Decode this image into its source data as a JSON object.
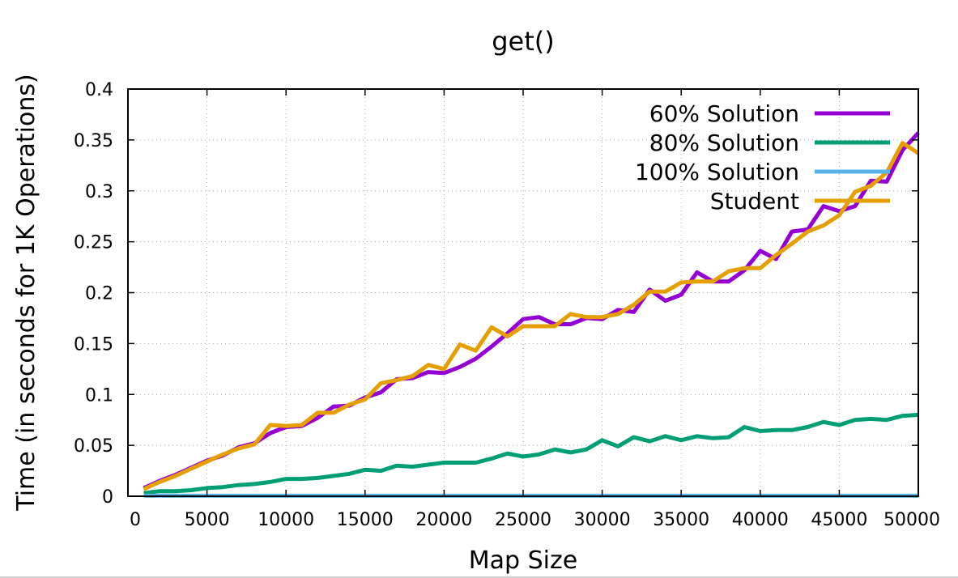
{
  "chart_data": {
    "type": "line",
    "title": "get()",
    "xlabel": "Map Size",
    "ylabel": "Time (in seconds for 1K Operations)",
    "xlim": [
      0,
      50000
    ],
    "ylim": [
      0,
      0.4
    ],
    "x_ticks": [
      0,
      5000,
      10000,
      15000,
      20000,
      25000,
      30000,
      35000,
      40000,
      45000,
      50000
    ],
    "x_tick_labels": [
      "0",
      "5000",
      "10000",
      "15000",
      "20000",
      "25000",
      "30000",
      "35000",
      "40000",
      "45000",
      "50000"
    ],
    "y_ticks": [
      0,
      0.05,
      0.1,
      0.15,
      0.2,
      0.25,
      0.3,
      0.35,
      0.4
    ],
    "y_tick_labels": [
      "0",
      "0.05",
      "0.1",
      "0.15",
      "0.2",
      "0.25",
      "0.3",
      "0.35",
      "0.4"
    ],
    "grid": true,
    "legend_position": "top-right",
    "x": [
      1000,
      2000,
      3000,
      4000,
      5000,
      6000,
      7000,
      8000,
      9000,
      10000,
      11000,
      12000,
      13000,
      14000,
      15000,
      16000,
      17000,
      18000,
      19000,
      20000,
      21000,
      22000,
      23000,
      24000,
      25000,
      26000,
      27000,
      28000,
      29000,
      30000,
      31000,
      32000,
      33000,
      34000,
      35000,
      36000,
      37000,
      38000,
      39000,
      40000,
      41000,
      42000,
      43000,
      44000,
      45000,
      46000,
      47000,
      48000,
      49000,
      50000
    ],
    "series": [
      {
        "name": "60% Solution",
        "color": "#9400d3",
        "values": [
          0.008,
          0.015,
          0.021,
          0.028,
          0.035,
          0.04,
          0.048,
          0.052,
          0.062,
          0.068,
          0.069,
          0.077,
          0.088,
          0.089,
          0.097,
          0.102,
          0.115,
          0.116,
          0.122,
          0.121,
          0.127,
          0.135,
          0.147,
          0.16,
          0.174,
          0.176,
          0.169,
          0.169,
          0.175,
          0.174,
          0.183,
          0.181,
          0.203,
          0.192,
          0.198,
          0.22,
          0.211,
          0.211,
          0.222,
          0.241,
          0.233,
          0.26,
          0.262,
          0.285,
          0.28,
          0.285,
          0.31,
          0.309,
          0.34,
          0.357
        ]
      },
      {
        "name": "80% Solution",
        "color": "#009e73",
        "values": [
          0.003,
          0.005,
          0.005,
          0.006,
          0.008,
          0.009,
          0.011,
          0.012,
          0.014,
          0.017,
          0.017,
          0.018,
          0.02,
          0.022,
          0.026,
          0.025,
          0.03,
          0.029,
          0.031,
          0.033,
          0.033,
          0.033,
          0.037,
          0.042,
          0.039,
          0.041,
          0.046,
          0.043,
          0.046,
          0.055,
          0.049,
          0.058,
          0.054,
          0.059,
          0.055,
          0.059,
          0.057,
          0.058,
          0.068,
          0.064,
          0.065,
          0.065,
          0.068,
          0.073,
          0.07,
          0.075,
          0.076,
          0.075,
          0.079,
          0.08
        ]
      },
      {
        "name": "100% Solution",
        "color": "#56b4e9",
        "values": [
          0.0005,
          0.0005,
          0.0005,
          0.0005,
          0.0005,
          0.0005,
          0.0005,
          0.0005,
          0.0005,
          0.0005,
          0.0005,
          0.0005,
          0.0005,
          0.0005,
          0.0005,
          0.0005,
          0.0005,
          0.0005,
          0.0005,
          0.0005,
          0.0005,
          0.0005,
          0.0005,
          0.0005,
          0.0005,
          0.0005,
          0.0005,
          0.0005,
          0.0005,
          0.0005,
          0.0005,
          0.0005,
          0.0005,
          0.0005,
          0.0005,
          0.0005,
          0.0005,
          0.0005,
          0.0005,
          0.0005,
          0.0005,
          0.0005,
          0.0005,
          0.0005,
          0.0005,
          0.0005,
          0.0005,
          0.0005,
          0.0005,
          0.0005
        ]
      },
      {
        "name": "Student",
        "color": "#e69f00",
        "values": [
          0.007,
          0.014,
          0.02,
          0.027,
          0.034,
          0.041,
          0.047,
          0.051,
          0.07,
          0.069,
          0.07,
          0.082,
          0.082,
          0.09,
          0.095,
          0.111,
          0.114,
          0.118,
          0.129,
          0.125,
          0.149,
          0.143,
          0.166,
          0.157,
          0.167,
          0.167,
          0.167,
          0.179,
          0.176,
          0.176,
          0.179,
          0.188,
          0.201,
          0.201,
          0.21,
          0.211,
          0.211,
          0.221,
          0.224,
          0.224,
          0.237,
          0.248,
          0.26,
          0.266,
          0.276,
          0.299,
          0.305,
          0.318,
          0.347,
          0.337
        ]
      }
    ]
  }
}
